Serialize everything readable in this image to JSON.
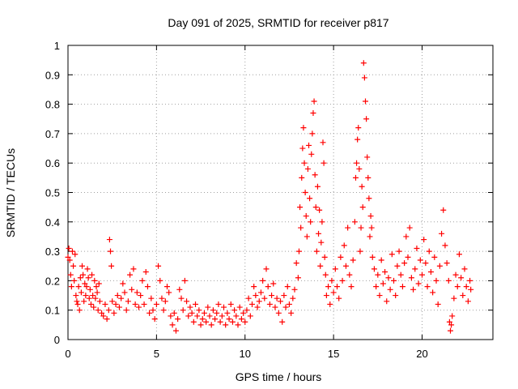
{
  "chart_data": {
    "type": "scatter",
    "title": "Day 091 of 2025, SRMTID for receiver p817",
    "xlabel": "GPS time / hours",
    "ylabel": "SRMTID / TECUs",
    "xlim": [
      0,
      24
    ],
    "ylim": [
      0,
      1
    ],
    "xticks": [
      0,
      5,
      10,
      15,
      20
    ],
    "xtick_labels": [
      "0",
      "5",
      "10",
      "15",
      "20"
    ],
    "yticks": [
      0,
      0.1,
      0.2,
      0.3,
      0.4,
      0.5,
      0.6,
      0.7,
      0.8,
      0.9,
      1
    ],
    "ytick_labels": [
      "0",
      "0.1",
      "0.2",
      "0.3",
      "0.4",
      "0.5",
      "0.6",
      "0.7",
      "0.8",
      "0.9",
      "1"
    ],
    "grid": true,
    "marker": "+",
    "colors": {
      "series": "#ff0000"
    },
    "series": [
      {
        "name": "SRMTID",
        "points": [
          [
            0.0,
            0.28
          ],
          [
            0.05,
            0.31
          ],
          [
            0.1,
            0.27
          ],
          [
            0.15,
            0.22
          ],
          [
            0.2,
            0.18
          ],
          [
            0.25,
            0.3
          ],
          [
            0.3,
            0.25
          ],
          [
            0.35,
            0.2
          ],
          [
            0.4,
            0.29
          ],
          [
            0.45,
            0.15
          ],
          [
            0.5,
            0.13
          ],
          [
            0.55,
            0.12
          ],
          [
            0.6,
            0.18
          ],
          [
            0.65,
            0.1
          ],
          [
            0.7,
            0.21
          ],
          [
            0.75,
            0.16
          ],
          [
            0.8,
            0.25
          ],
          [
            0.85,
            0.22
          ],
          [
            0.9,
            0.13
          ],
          [
            0.95,
            0.19
          ],
          [
            1.0,
            0.15
          ],
          [
            1.05,
            0.18
          ],
          [
            1.1,
            0.24
          ],
          [
            1.15,
            0.21
          ],
          [
            1.2,
            0.14
          ],
          [
            1.25,
            0.17
          ],
          [
            1.3,
            0.12
          ],
          [
            1.35,
            0.22
          ],
          [
            1.4,
            0.15
          ],
          [
            1.45,
            0.11
          ],
          [
            1.5,
            0.2
          ],
          [
            1.55,
            0.14
          ],
          [
            1.6,
            0.18
          ],
          [
            1.65,
            0.16
          ],
          [
            1.7,
            0.1
          ],
          [
            1.75,
            0.19
          ],
          [
            1.8,
            0.13
          ],
          [
            1.9,
            0.09
          ],
          [
            2.0,
            0.08
          ],
          [
            2.1,
            0.12
          ],
          [
            2.2,
            0.07
          ],
          [
            2.3,
            0.1
          ],
          [
            2.35,
            0.34
          ],
          [
            2.4,
            0.3
          ],
          [
            2.45,
            0.25
          ],
          [
            2.5,
            0.13
          ],
          [
            2.6,
            0.09
          ],
          [
            2.7,
            0.12
          ],
          [
            2.8,
            0.15
          ],
          [
            2.9,
            0.11
          ],
          [
            3.0,
            0.14
          ],
          [
            3.1,
            0.19
          ],
          [
            3.2,
            0.16
          ],
          [
            3.3,
            0.1
          ],
          [
            3.4,
            0.13
          ],
          [
            3.5,
            0.22
          ],
          [
            3.6,
            0.17
          ],
          [
            3.7,
            0.24
          ],
          [
            3.8,
            0.12
          ],
          [
            3.9,
            0.16
          ],
          [
            4.0,
            0.11
          ],
          [
            4.1,
            0.15
          ],
          [
            4.2,
            0.2
          ],
          [
            4.3,
            0.12
          ],
          [
            4.4,
            0.23
          ],
          [
            4.5,
            0.18
          ],
          [
            4.6,
            0.09
          ],
          [
            4.7,
            0.14
          ],
          [
            4.8,
            0.1
          ],
          [
            4.9,
            0.07
          ],
          [
            5.0,
            0.12
          ],
          [
            5.1,
            0.25
          ],
          [
            5.2,
            0.2
          ],
          [
            5.3,
            0.14
          ],
          [
            5.4,
            0.1
          ],
          [
            5.5,
            0.13
          ],
          [
            5.6,
            0.18
          ],
          [
            5.7,
            0.16
          ],
          [
            5.8,
            0.08
          ],
          [
            5.9,
            0.05
          ],
          [
            6.0,
            0.09
          ],
          [
            6.1,
            0.03
          ],
          [
            6.2,
            0.07
          ],
          [
            6.3,
            0.17
          ],
          [
            6.4,
            0.14
          ],
          [
            6.5,
            0.1
          ],
          [
            6.6,
            0.2
          ],
          [
            6.7,
            0.13
          ],
          [
            6.8,
            0.08
          ],
          [
            6.9,
            0.11
          ],
          [
            7.0,
            0.09
          ],
          [
            7.1,
            0.06
          ],
          [
            7.2,
            0.12
          ],
          [
            7.3,
            0.08
          ],
          [
            7.4,
            0.1
          ],
          [
            7.5,
            0.05
          ],
          [
            7.6,
            0.07
          ],
          [
            7.7,
            0.09
          ],
          [
            7.8,
            0.06
          ],
          [
            7.9,
            0.11
          ],
          [
            8.0,
            0.08
          ],
          [
            8.1,
            0.05
          ],
          [
            8.2,
            0.1
          ],
          [
            8.3,
            0.07
          ],
          [
            8.4,
            0.09
          ],
          [
            8.5,
            0.12
          ],
          [
            8.6,
            0.06
          ],
          [
            8.7,
            0.08
          ],
          [
            8.8,
            0.11
          ],
          [
            8.9,
            0.05
          ],
          [
            9.0,
            0.09
          ],
          [
            9.1,
            0.07
          ],
          [
            9.2,
            0.12
          ],
          [
            9.3,
            0.06
          ],
          [
            9.4,
            0.1
          ],
          [
            9.5,
            0.08
          ],
          [
            9.6,
            0.05
          ],
          [
            9.7,
            0.11
          ],
          [
            9.8,
            0.07
          ],
          [
            9.9,
            0.09
          ],
          [
            10.0,
            0.06
          ],
          [
            10.1,
            0.1
          ],
          [
            10.2,
            0.14
          ],
          [
            10.3,
            0.08
          ],
          [
            10.4,
            0.12
          ],
          [
            10.5,
            0.18
          ],
          [
            10.6,
            0.15
          ],
          [
            10.7,
            0.11
          ],
          [
            10.8,
            0.13
          ],
          [
            10.9,
            0.16
          ],
          [
            11.0,
            0.2
          ],
          [
            11.1,
            0.14
          ],
          [
            11.2,
            0.24
          ],
          [
            11.3,
            0.18
          ],
          [
            11.4,
            0.12
          ],
          [
            11.5,
            0.15
          ],
          [
            11.6,
            0.19
          ],
          [
            11.7,
            0.11
          ],
          [
            11.8,
            0.14
          ],
          [
            11.9,
            0.09
          ],
          [
            12.0,
            0.13
          ],
          [
            12.1,
            0.06
          ],
          [
            12.2,
            0.15
          ],
          [
            12.3,
            0.11
          ],
          [
            12.4,
            0.18
          ],
          [
            12.5,
            0.12
          ],
          [
            12.6,
            0.09
          ],
          [
            12.7,
            0.14
          ],
          [
            12.8,
            0.17
          ],
          [
            12.9,
            0.26
          ],
          [
            13.0,
            0.21
          ],
          [
            13.05,
            0.3
          ],
          [
            13.1,
            0.45
          ],
          [
            13.15,
            0.38
          ],
          [
            13.2,
            0.55
          ],
          [
            13.25,
            0.65
          ],
          [
            13.3,
            0.72
          ],
          [
            13.35,
            0.6
          ],
          [
            13.4,
            0.5
          ],
          [
            13.45,
            0.42
          ],
          [
            13.5,
            0.35
          ],
          [
            13.55,
            0.58
          ],
          [
            13.6,
            0.66
          ],
          [
            13.65,
            0.48
          ],
          [
            13.7,
            0.4
          ],
          [
            13.75,
            0.63
          ],
          [
            13.8,
            0.7
          ],
          [
            13.85,
            0.77
          ],
          [
            13.9,
            0.81
          ],
          [
            13.95,
            0.56
          ],
          [
            14.0,
            0.45
          ],
          [
            14.05,
            0.3
          ],
          [
            14.1,
            0.52
          ],
          [
            14.15,
            0.36
          ],
          [
            14.2,
            0.44
          ],
          [
            14.25,
            0.25
          ],
          [
            14.3,
            0.33
          ],
          [
            14.35,
            0.4
          ],
          [
            14.4,
            0.67
          ],
          [
            14.45,
            0.6
          ],
          [
            14.5,
            0.28
          ],
          [
            14.55,
            0.22
          ],
          [
            14.6,
            0.15
          ],
          [
            14.7,
            0.18
          ],
          [
            14.8,
            0.12
          ],
          [
            14.9,
            0.2
          ],
          [
            15.0,
            0.16
          ],
          [
            15.1,
            0.24
          ],
          [
            15.2,
            0.18
          ],
          [
            15.3,
            0.14
          ],
          [
            15.4,
            0.28
          ],
          [
            15.5,
            0.2
          ],
          [
            15.6,
            0.32
          ],
          [
            15.7,
            0.25
          ],
          [
            15.8,
            0.38
          ],
          [
            15.9,
            0.22
          ],
          [
            16.0,
            0.18
          ],
          [
            16.1,
            0.27
          ],
          [
            16.2,
            0.4
          ],
          [
            16.25,
            0.55
          ],
          [
            16.3,
            0.6
          ],
          [
            16.35,
            0.68
          ],
          [
            16.4,
            0.72
          ],
          [
            16.45,
            0.58
          ],
          [
            16.5,
            0.3
          ],
          [
            16.55,
            0.38
          ],
          [
            16.6,
            0.52
          ],
          [
            16.65,
            0.45
          ],
          [
            16.7,
            0.94
          ],
          [
            16.75,
            0.89
          ],
          [
            16.8,
            0.81
          ],
          [
            16.85,
            0.75
          ],
          [
            16.9,
            0.62
          ],
          [
            16.95,
            0.55
          ],
          [
            17.0,
            0.48
          ],
          [
            17.05,
            0.35
          ],
          [
            17.1,
            0.42
          ],
          [
            17.15,
            0.38
          ],
          [
            17.2,
            0.28
          ],
          [
            17.3,
            0.24
          ],
          [
            17.4,
            0.18
          ],
          [
            17.5,
            0.22
          ],
          [
            17.6,
            0.15
          ],
          [
            17.7,
            0.27
          ],
          [
            17.8,
            0.19
          ],
          [
            17.9,
            0.23
          ],
          [
            18.0,
            0.13
          ],
          [
            18.1,
            0.21
          ],
          [
            18.2,
            0.17
          ],
          [
            18.3,
            0.29
          ],
          [
            18.4,
            0.2
          ],
          [
            18.5,
            0.15
          ],
          [
            18.6,
            0.25
          ],
          [
            18.7,
            0.3
          ],
          [
            18.8,
            0.22
          ],
          [
            18.9,
            0.18
          ],
          [
            19.0,
            0.26
          ],
          [
            19.1,
            0.35
          ],
          [
            19.2,
            0.28
          ],
          [
            19.3,
            0.38
          ],
          [
            19.4,
            0.21
          ],
          [
            19.5,
            0.17
          ],
          [
            19.6,
            0.24
          ],
          [
            19.7,
            0.31
          ],
          [
            19.8,
            0.19
          ],
          [
            19.9,
            0.27
          ],
          [
            20.0,
            0.22
          ],
          [
            20.1,
            0.34
          ],
          [
            20.2,
            0.26
          ],
          [
            20.3,
            0.18
          ],
          [
            20.4,
            0.3
          ],
          [
            20.5,
            0.23
          ],
          [
            20.6,
            0.16
          ],
          [
            20.7,
            0.28
          ],
          [
            20.8,
            0.2
          ],
          [
            20.9,
            0.12
          ],
          [
            21.0,
            0.25
          ],
          [
            21.1,
            0.36
          ],
          [
            21.2,
            0.44
          ],
          [
            21.3,
            0.32
          ],
          [
            21.4,
            0.26
          ],
          [
            21.5,
            0.2
          ],
          [
            21.55,
            0.06
          ],
          [
            21.6,
            0.03
          ],
          [
            21.65,
            0.05
          ],
          [
            21.7,
            0.08
          ],
          [
            21.8,
            0.14
          ],
          [
            21.9,
            0.22
          ],
          [
            22.0,
            0.18
          ],
          [
            22.1,
            0.29
          ],
          [
            22.2,
            0.21
          ],
          [
            22.3,
            0.15
          ],
          [
            22.4,
            0.24
          ],
          [
            22.5,
            0.18
          ],
          [
            22.6,
            0.13
          ],
          [
            22.7,
            0.2
          ],
          [
            22.75,
            0.17
          ]
        ]
      }
    ]
  }
}
